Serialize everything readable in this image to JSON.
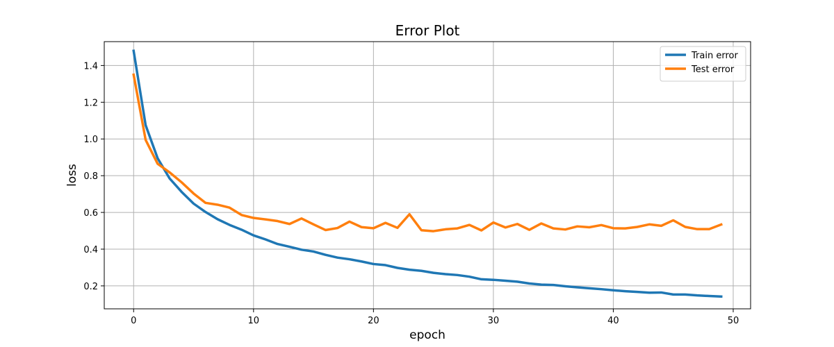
{
  "chart_data": {
    "type": "line",
    "title": "Error Plot",
    "xlabel": "epoch",
    "ylabel": "loss",
    "xlim": [
      -2.45,
      51.45
    ],
    "ylim": [
      0.075,
      1.53
    ],
    "xticks": [
      0,
      10,
      20,
      30,
      40,
      50
    ],
    "yticks": [
      0.2,
      0.4,
      0.6,
      0.8,
      1.0,
      1.2,
      1.4
    ],
    "grid": true,
    "legend_position": "top-right",
    "series": [
      {
        "name": "Train error",
        "color": "#1f77b4",
        "x": [
          0,
          1,
          2,
          3,
          4,
          5,
          6,
          7,
          8,
          9,
          10,
          11,
          12,
          13,
          14,
          15,
          16,
          17,
          18,
          19,
          20,
          21,
          22,
          23,
          24,
          25,
          26,
          27,
          28,
          29,
          30,
          31,
          32,
          33,
          34,
          35,
          36,
          37,
          38,
          39,
          40,
          41,
          42,
          43,
          44,
          45,
          46,
          47,
          48,
          49
        ],
        "y": [
          1.48,
          1.075,
          0.895,
          0.785,
          0.712,
          0.648,
          0.602,
          0.563,
          0.532,
          0.506,
          0.475,
          0.453,
          0.428,
          0.413,
          0.397,
          0.387,
          0.369,
          0.354,
          0.345,
          0.333,
          0.319,
          0.313,
          0.298,
          0.288,
          0.282,
          0.271,
          0.264,
          0.259,
          0.25,
          0.236,
          0.233,
          0.228,
          0.223,
          0.213,
          0.207,
          0.205,
          0.198,
          0.192,
          0.187,
          0.182,
          0.176,
          0.171,
          0.167,
          0.163,
          0.164,
          0.153,
          0.153,
          0.148,
          0.145,
          0.142
        ]
      },
      {
        "name": "Test error",
        "color": "#ff7f0e",
        "x": [
          0,
          1,
          2,
          3,
          4,
          5,
          6,
          7,
          8,
          9,
          10,
          11,
          12,
          13,
          14,
          15,
          16,
          17,
          18,
          19,
          20,
          21,
          22,
          23,
          24,
          25,
          26,
          27,
          28,
          29,
          30,
          31,
          32,
          33,
          34,
          35,
          36,
          37,
          38,
          39,
          40,
          41,
          42,
          43,
          44,
          45,
          46,
          47,
          48,
          49
        ],
        "y": [
          1.35,
          0.995,
          0.865,
          0.818,
          0.764,
          0.703,
          0.652,
          0.642,
          0.626,
          0.586,
          0.57,
          0.562,
          0.553,
          0.537,
          0.567,
          0.535,
          0.504,
          0.515,
          0.55,
          0.52,
          0.514,
          0.543,
          0.516,
          0.59,
          0.503,
          0.498,
          0.508,
          0.513,
          0.532,
          0.502,
          0.545,
          0.518,
          0.537,
          0.505,
          0.54,
          0.513,
          0.507,
          0.524,
          0.519,
          0.531,
          0.514,
          0.513,
          0.521,
          0.535,
          0.527,
          0.557,
          0.521,
          0.509,
          0.509,
          0.534
        ]
      }
    ]
  }
}
